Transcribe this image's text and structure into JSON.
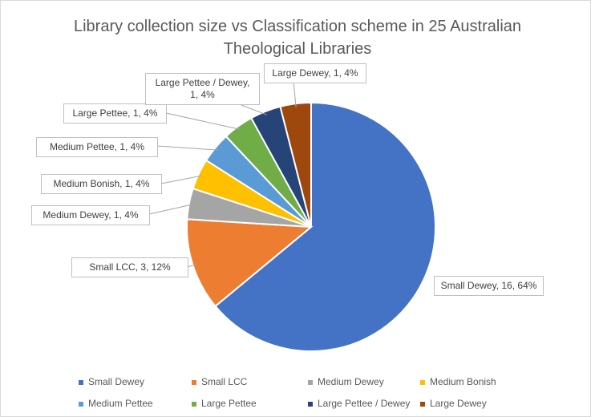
{
  "chart_data": {
    "type": "pie",
    "title": "Library collection size vs Classification scheme in 25 Australian Theological Libraries",
    "categories": [
      "Small Dewey",
      "Small LCC",
      "Medium Dewey",
      "Medium Bonish",
      "Medium Pettee",
      "Large Pettee",
      "Large Pettee / Dewey",
      "Large Dewey"
    ],
    "values": [
      16,
      3,
      1,
      1,
      1,
      1,
      1,
      1
    ],
    "value_labels": [
      "Small Dewey, 16, 64%",
      "Small LCC, 3, 12%",
      "Medium Dewey, 1, 4%",
      "Medium Bonish, 1, 4%",
      "Medium Pettee, 1, 4%",
      "Large Pettee, 1, 4%",
      "Large Pettee / Dewey, 1, 4%",
      "Large Dewey, 1, 4%"
    ],
    "colors": [
      "#4472c4",
      "#ed7d31",
      "#a5a5a5",
      "#ffc000",
      "#5b9bd5",
      "#70ad47",
      "#264478",
      "#9e480e"
    ],
    "legend": "bottom"
  }
}
